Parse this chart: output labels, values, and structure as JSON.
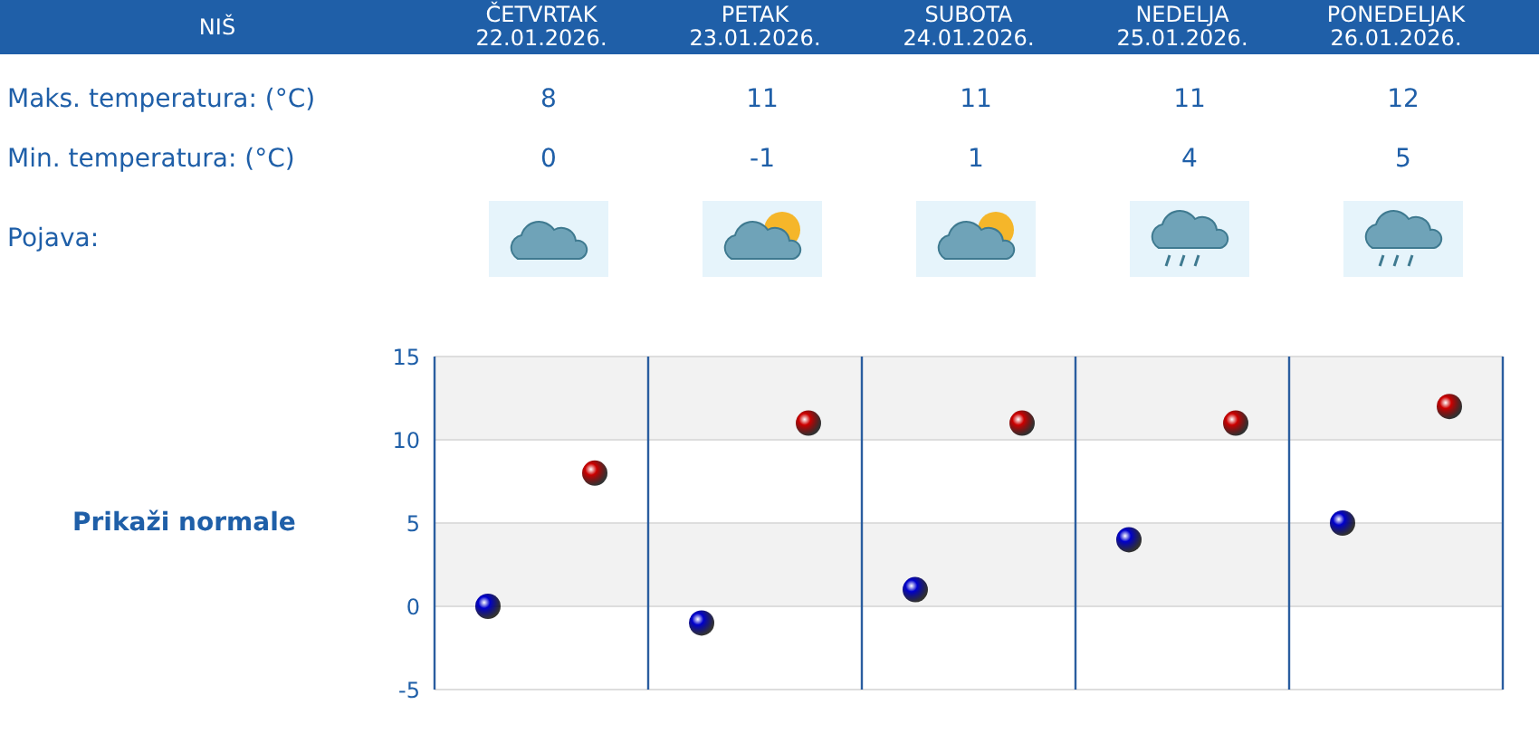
{
  "chart_data": {
    "type": "scatter",
    "title": "NIŠ",
    "categories": [
      null,
      null,
      null,
      null,
      null
    ],
    "series": [
      {
        "color": "#cc0000",
        "values": [
          8,
          11,
          11,
          11,
          12
        ]
      },
      {
        "color": "#0000cc",
        "values": [
          0,
          -1,
          1,
          4,
          5
        ]
      }
    ],
    "ylim": [
      -5,
      15
    ],
    "yticks": [
      -5,
      0,
      5,
      10,
      15
    ],
    "grid": true,
    "marker": "circle",
    "data_labels": true,
    "tick_labels": "y",
    "annotations": [
      "ČETVRTAK 22.01.2026.",
      "PETAK 23.01.2026.",
      "SUBOTA 24.01.2026.",
      "NEDELJA 25.01.2026.",
      "PONEDELJAK 26.01.2026.",
      "Maks. temperatura: (°C)",
      "Min. temperatura: (°C)",
      "Pojava:",
      "Prikaži normale"
    ]
  }
}
